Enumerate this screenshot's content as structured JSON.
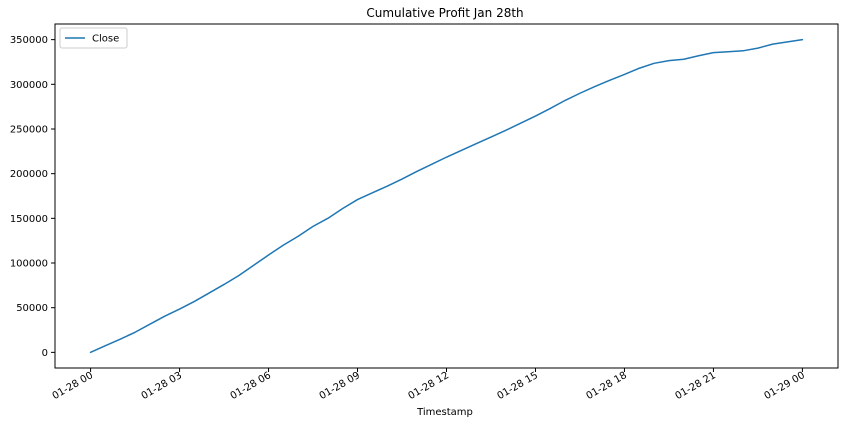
{
  "chart_data": {
    "type": "line",
    "title": "Cumulative Profit Jan 28th",
    "xlabel": "Timestamp",
    "ylabel": "",
    "x_unit": "hours",
    "x_ticks": [
      {
        "x": 0,
        "label": "01-28 00"
      },
      {
        "x": 3,
        "label": "01-28 03"
      },
      {
        "x": 6,
        "label": "01-28 06"
      },
      {
        "x": 9,
        "label": "01-28 09"
      },
      {
        "x": 12,
        "label": "01-28 12"
      },
      {
        "x": 15,
        "label": "01-28 15"
      },
      {
        "x": 18,
        "label": "01-28 18"
      },
      {
        "x": 21,
        "label": "01-28 21"
      },
      {
        "x": 24,
        "label": "01-29 00"
      }
    ],
    "y_ticks": [
      0,
      50000,
      100000,
      150000,
      200000,
      250000,
      300000,
      350000
    ],
    "xlim": [
      -1.2,
      25.2
    ],
    "ylim": [
      -17500,
      367500
    ],
    "grid": false,
    "legend": {
      "position": "top-left"
    },
    "series": [
      {
        "name": "Close",
        "color": "#1f77b4",
        "x": [
          0,
          0.5,
          1,
          1.5,
          2,
          2.5,
          3,
          3.5,
          4,
          4.5,
          5,
          5.5,
          6,
          6.5,
          7,
          7.5,
          8,
          8.5,
          9,
          9.5,
          10,
          10.5,
          11,
          11.5,
          12,
          12.5,
          13,
          13.5,
          14,
          14.5,
          15,
          15.5,
          16,
          16.5,
          17,
          17.5,
          18,
          18.5,
          19,
          19.5,
          20,
          20.5,
          21,
          21.5,
          22,
          22.5,
          23,
          23.5,
          24
        ],
        "y": [
          0,
          7500,
          14800,
          22500,
          31500,
          40500,
          48500,
          57000,
          66500,
          76000,
          86000,
          97500,
          109000,
          120000,
          130000,
          141000,
          150000,
          161000,
          171000,
          178500,
          186000,
          194000,
          202500,
          210500,
          218500,
          226000,
          233500,
          241000,
          248500,
          256500,
          264500,
          273000,
          282000,
          290000,
          297500,
          304500,
          311000,
          318000,
          323500,
          326500,
          328000,
          332000,
          335500,
          336500,
          337500,
          340500,
          345000,
          347500,
          350000
        ]
      }
    ]
  }
}
